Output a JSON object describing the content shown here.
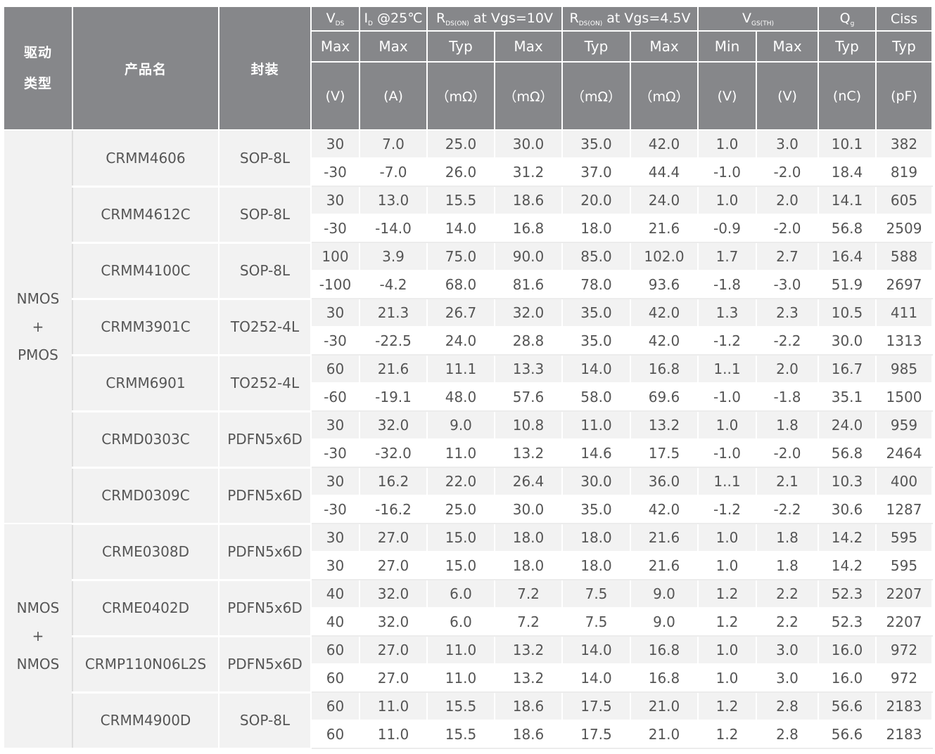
{
  "header": {
    "drive_type": [
      "驱动",
      "类型"
    ],
    "product_name": "产品名",
    "package": "封装",
    "vds": {
      "main": "V",
      "sub": "DS"
    },
    "id": {
      "main": "I",
      "sub": "D",
      "suffix": " @25℃"
    },
    "rds10": {
      "main": "R",
      "sub": "DS(ON)",
      "suffix": " at Vgs=10V"
    },
    "rds45": {
      "main": "R",
      "sub": "DS(ON)",
      "suffix": " at Vgs=4.5V"
    },
    "vgs": {
      "main": "V",
      "sub": "GS(TH)"
    },
    "qg": {
      "main": "Q",
      "sub": "g"
    },
    "ciss": "Ciss",
    "row2": [
      "Max",
      "Max",
      "Typ",
      "Max",
      "Typ",
      "Max",
      "Min",
      "Max",
      "Typ",
      "Typ"
    ],
    "row3": [
      "(V)",
      "(A)",
      "（mΩ）",
      "（mΩ）",
      "（mΩ）",
      "（mΩ）",
      "(V)",
      "(V)",
      "(nC)",
      "(pF)"
    ]
  },
  "groups": [
    {
      "label": [
        "NMOS",
        "+",
        "PMOS"
      ],
      "products": [
        {
          "name": "CRMM4606",
          "package": "SOP-8L",
          "rows": [
            [
              "30",
              "7.0",
              "25.0",
              "30.0",
              "35.0",
              "42.0",
              "1.0",
              "3.0",
              "10.1",
              "382"
            ],
            [
              "-30",
              "-7.0",
              "26.0",
              "31.2",
              "37.0",
              "44.4",
              "-1.0",
              "-2.0",
              "18.4",
              "819"
            ]
          ]
        },
        {
          "name": "CRMM4612C",
          "package": "SOP-8L",
          "rows": [
            [
              "30",
              "13.0",
              "15.5",
              "18.6",
              "20.0",
              "24.0",
              "1.0",
              "2.0",
              "14.1",
              "605"
            ],
            [
              "-30",
              "-14.0",
              "14.0",
              "16.8",
              "18.0",
              "21.6",
              "-0.9",
              "-2.0",
              "56.8",
              "2509"
            ]
          ]
        },
        {
          "name": "CRMM4100C",
          "package": "SOP-8L",
          "rows": [
            [
              "100",
              "3.9",
              "75.0",
              "90.0",
              "85.0",
              "102.0",
              "1.7",
              "2.7",
              "16.4",
              "588"
            ],
            [
              "-100",
              "-4.2",
              "68.0",
              "81.6",
              "78.0",
              "93.6",
              "-1.8",
              "-3.0",
              "51.9",
              "2697"
            ]
          ]
        },
        {
          "name": "CRMM3901C",
          "package": "TO252-4L",
          "rows": [
            [
              "30",
              "21.3",
              "26.7",
              "32.0",
              "35.0",
              "42.0",
              "1.3",
              "2.3",
              "10.5",
              "411"
            ],
            [
              "-30",
              "-22.5",
              "24.0",
              "28.8",
              "35.0",
              "42.0",
              "-1.2",
              "-2.2",
              "30.0",
              "1313"
            ]
          ]
        },
        {
          "name": "CRMM6901",
          "package": "TO252-4L",
          "rows": [
            [
              "60",
              "21.6",
              "11.1",
              "13.3",
              "14.0",
              "16.8",
              "1..1",
              "2.0",
              "16.7",
              "985"
            ],
            [
              "-60",
              "-19.1",
              "48.0",
              "57.6",
              "58.0",
              "69.6",
              "-1.0",
              "-1.8",
              "35.1",
              "1500"
            ]
          ]
        },
        {
          "name": "CRMD0303C",
          "package": "PDFN5x6D",
          "rows": [
            [
              "30",
              "32.0",
              "9.0",
              "10.8",
              "11.0",
              "13.2",
              "1.0",
              "1.8",
              "24.0",
              "959"
            ],
            [
              "-30",
              "-32.0",
              "11.0",
              "13.2",
              "14.6",
              "17.5",
              "-1.0",
              "-2.0",
              "56.8",
              "2464"
            ]
          ]
        },
        {
          "name": "CRMD0309C",
          "package": "PDFN5x6D",
          "rows": [
            [
              "30",
              "16.2",
              "22.0",
              "26.4",
              "30.0",
              "36.0",
              "1..1",
              "2.1",
              "10.3",
              "400"
            ],
            [
              "-30",
              "-16.2",
              "25.0",
              "30.0",
              "35.0",
              "42.0",
              "-1.2",
              "-2.2",
              "30.6",
              "1287"
            ]
          ]
        }
      ]
    },
    {
      "label": [
        "NMOS",
        "+",
        "NMOS"
      ],
      "products": [
        {
          "name": "CRME0308D",
          "package": "PDFN5x6D",
          "rows": [
            [
              "30",
              "27.0",
              "15.0",
              "18.0",
              "18.0",
              "21.6",
              "1.0",
              "1.8",
              "14.2",
              "595"
            ],
            [
              "30",
              "27.0",
              "15.0",
              "18.0",
              "18.0",
              "21.6",
              "1.0",
              "1.8",
              "14.2",
              "595"
            ]
          ]
        },
        {
          "name": "CRME0402D",
          "package": "PDFN5x6D",
          "rows": [
            [
              "40",
              "32.0",
              "6.0",
              "7.2",
              "7.5",
              "9.0",
              "1.2",
              "2.2",
              "52.3",
              "2207"
            ],
            [
              "40",
              "32.0",
              "6.0",
              "7.2",
              "7.5",
              "9.0",
              "1.2",
              "2.2",
              "52.3",
              "2207"
            ]
          ]
        },
        {
          "name": "CRMP110N06L2S",
          "package": "PDFN5x6D",
          "rows": [
            [
              "60",
              "27.0",
              "11.0",
              "13.2",
              "14.0",
              "16.8",
              "1.0",
              "3.0",
              "16.0",
              "972"
            ],
            [
              "60",
              "27.0",
              "11.0",
              "13.2",
              "14.0",
              "16.8",
              "1.0",
              "3.0",
              "16.0",
              "972"
            ]
          ]
        },
        {
          "name": "CRMM4900D",
          "package": "SOP-8L",
          "rows": [
            [
              "60",
              "11.0",
              "15.5",
              "18.6",
              "17.5",
              "21.0",
              "1.2",
              "2.8",
              "56.6",
              "2183"
            ],
            [
              "60",
              "11.0",
              "15.5",
              "18.6",
              "17.5",
              "21.0",
              "1.2",
              "2.8",
              "56.6",
              "2183"
            ]
          ]
        }
      ]
    }
  ]
}
